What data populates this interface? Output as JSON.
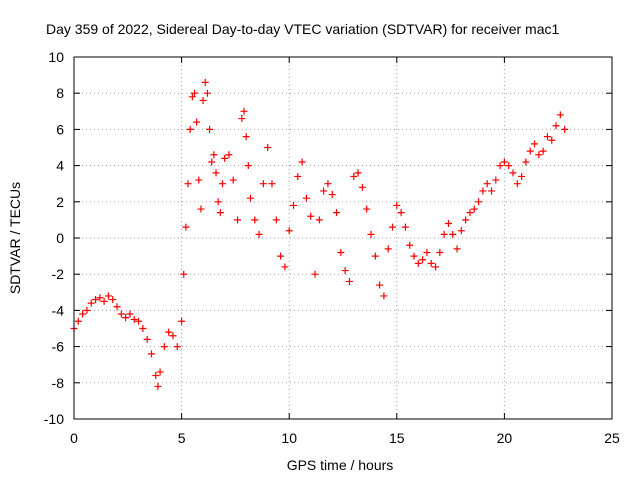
{
  "chart_data": {
    "type": "scatter",
    "title": "Day 359 of 2022, Sidereal Day-to-day VTEC variation (SDTVAR) for receiver mac1",
    "xlabel": "GPS time / hours",
    "ylabel": "SDTVAR / TECUs",
    "xlim": [
      0,
      25
    ],
    "ylim": [
      -10,
      10
    ],
    "xticks": [
      0,
      5,
      10,
      15,
      20,
      25
    ],
    "yticks": [
      -10,
      -8,
      -6,
      -4,
      -2,
      0,
      2,
      4,
      6,
      8,
      10
    ],
    "xtick_labels": [
      "0",
      "5",
      "10",
      "15",
      "20",
      "25"
    ],
    "ytick_labels": [
      "-10",
      "-8",
      "-6",
      "-4",
      "-2",
      "0",
      "2",
      "4",
      "6",
      "8",
      "10"
    ],
    "grid": true,
    "marker": "+",
    "color": "#ff0000",
    "series": [
      {
        "name": "SDTVAR",
        "points": [
          [
            0.0,
            -5.0
          ],
          [
            0.2,
            -4.6
          ],
          [
            0.4,
            -4.2
          ],
          [
            0.6,
            -4.0
          ],
          [
            0.8,
            -3.6
          ],
          [
            1.0,
            -3.4
          ],
          [
            1.2,
            -3.3
          ],
          [
            1.4,
            -3.5
          ],
          [
            1.6,
            -3.2
          ],
          [
            1.8,
            -3.4
          ],
          [
            2.0,
            -3.8
          ],
          [
            2.2,
            -4.2
          ],
          [
            2.4,
            -4.4
          ],
          [
            2.6,
            -4.2
          ],
          [
            2.8,
            -4.5
          ],
          [
            3.0,
            -4.6
          ],
          [
            3.2,
            -5.0
          ],
          [
            3.4,
            -5.6
          ],
          [
            3.6,
            -6.4
          ],
          [
            3.8,
            -7.6
          ],
          [
            3.9,
            -8.2
          ],
          [
            4.0,
            -7.4
          ],
          [
            4.2,
            -6.0
          ],
          [
            4.4,
            -5.2
          ],
          [
            4.6,
            -5.4
          ],
          [
            4.8,
            -6.0
          ],
          [
            5.0,
            -4.6
          ],
          [
            5.1,
            -2.0
          ],
          [
            5.2,
            0.6
          ],
          [
            5.3,
            3.0
          ],
          [
            5.4,
            6.0
          ],
          [
            5.5,
            7.8
          ],
          [
            5.6,
            8.0
          ],
          [
            5.7,
            6.4
          ],
          [
            5.8,
            3.2
          ],
          [
            5.9,
            1.6
          ],
          [
            6.0,
            7.6
          ],
          [
            6.1,
            8.6
          ],
          [
            6.2,
            8.0
          ],
          [
            6.3,
            6.0
          ],
          [
            6.4,
            4.2
          ],
          [
            6.5,
            4.6
          ],
          [
            6.6,
            3.6
          ],
          [
            6.7,
            2.0
          ],
          [
            6.8,
            1.4
          ],
          [
            6.9,
            3.0
          ],
          [
            7.0,
            4.4
          ],
          [
            7.2,
            4.6
          ],
          [
            7.4,
            3.2
          ],
          [
            7.6,
            1.0
          ],
          [
            7.8,
            6.6
          ],
          [
            7.9,
            7.0
          ],
          [
            8.0,
            5.6
          ],
          [
            8.1,
            4.0
          ],
          [
            8.2,
            2.2
          ],
          [
            8.4,
            1.0
          ],
          [
            8.6,
            0.2
          ],
          [
            8.8,
            3.0
          ],
          [
            9.0,
            5.0
          ],
          [
            9.2,
            3.0
          ],
          [
            9.4,
            1.0
          ],
          [
            9.6,
            -1.0
          ],
          [
            9.8,
            -1.6
          ],
          [
            10.0,
            0.4
          ],
          [
            10.2,
            1.8
          ],
          [
            10.4,
            3.4
          ],
          [
            10.6,
            4.2
          ],
          [
            10.8,
            2.2
          ],
          [
            11.0,
            1.2
          ],
          [
            11.2,
            -2.0
          ],
          [
            11.4,
            1.0
          ],
          [
            11.6,
            2.6
          ],
          [
            11.8,
            3.0
          ],
          [
            12.0,
            2.4
          ],
          [
            12.2,
            1.4
          ],
          [
            12.4,
            -0.8
          ],
          [
            12.6,
            -1.8
          ],
          [
            12.8,
            -2.4
          ],
          [
            13.0,
            3.4
          ],
          [
            13.2,
            3.6
          ],
          [
            13.4,
            2.8
          ],
          [
            13.6,
            1.6
          ],
          [
            13.8,
            0.2
          ],
          [
            14.0,
            -1.0
          ],
          [
            14.2,
            -2.6
          ],
          [
            14.4,
            -3.2
          ],
          [
            14.6,
            -0.6
          ],
          [
            14.8,
            0.6
          ],
          [
            15.0,
            1.8
          ],
          [
            15.2,
            1.4
          ],
          [
            15.4,
            0.6
          ],
          [
            15.6,
            -0.4
          ],
          [
            15.8,
            -1.0
          ],
          [
            16.0,
            -1.4
          ],
          [
            16.2,
            -1.2
          ],
          [
            16.4,
            -0.8
          ],
          [
            16.6,
            -1.4
          ],
          [
            16.8,
            -1.6
          ],
          [
            17.0,
            -0.8
          ],
          [
            17.2,
            0.2
          ],
          [
            17.4,
            0.8
          ],
          [
            17.6,
            0.2
          ],
          [
            17.8,
            -0.6
          ],
          [
            18.0,
            0.4
          ],
          [
            18.2,
            1.0
          ],
          [
            18.4,
            1.4
          ],
          [
            18.6,
            1.6
          ],
          [
            18.8,
            2.0
          ],
          [
            19.0,
            2.6
          ],
          [
            19.2,
            3.0
          ],
          [
            19.4,
            2.6
          ],
          [
            19.6,
            3.2
          ],
          [
            19.8,
            4.0
          ],
          [
            20.0,
            4.2
          ],
          [
            20.2,
            4.0
          ],
          [
            20.4,
            3.6
          ],
          [
            20.6,
            3.0
          ],
          [
            20.8,
            3.4
          ],
          [
            21.0,
            4.2
          ],
          [
            21.2,
            4.8
          ],
          [
            21.4,
            5.2
          ],
          [
            21.6,
            4.6
          ],
          [
            21.8,
            4.8
          ],
          [
            22.0,
            5.6
          ],
          [
            22.2,
            5.4
          ],
          [
            22.4,
            6.2
          ],
          [
            22.6,
            6.8
          ],
          [
            22.8,
            6.0
          ]
        ],
        "notes": "Dense cloud of '+' markers following this trace"
      }
    ]
  }
}
